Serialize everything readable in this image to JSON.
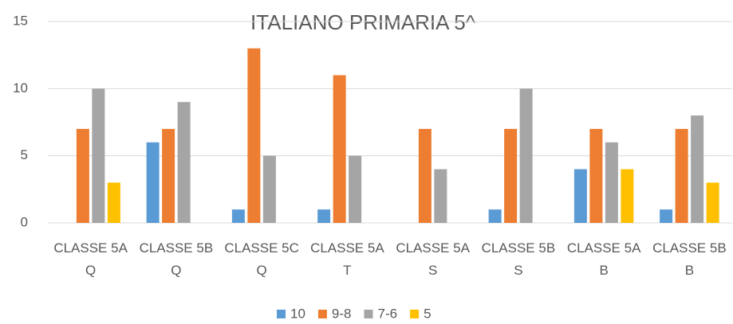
{
  "chart_data": {
    "type": "bar",
    "title": "ITALIANO PRIMARIA  5^",
    "categories": [
      "CLASSE 5A Q",
      "CLASSE 5B Q",
      "CLASSE 5C Q",
      "CLASSE 5A T",
      "CLASSE 5A S",
      "CLASSE 5B S",
      "CLASSE 5A B",
      "CLASSE 5B B"
    ],
    "series": [
      {
        "name": "10",
        "color": "#5b9bd5",
        "values": [
          0,
          6,
          1,
          1,
          0,
          1,
          4,
          1
        ]
      },
      {
        "name": "9-8",
        "color": "#ed7d31",
        "values": [
          7,
          7,
          13,
          11,
          7,
          7,
          7,
          7
        ]
      },
      {
        "name": "7-6",
        "color": "#a5a5a5",
        "values": [
          10,
          9,
          5,
          5,
          4,
          10,
          6,
          8
        ]
      },
      {
        "name": "5",
        "color": "#ffc000",
        "values": [
          3,
          0,
          0,
          0,
          0,
          0,
          4,
          3
        ]
      }
    ],
    "ylim": [
      0,
      15
    ],
    "yticks": [
      0,
      5,
      10,
      15
    ],
    "grid": true,
    "legend": "bottom"
  }
}
